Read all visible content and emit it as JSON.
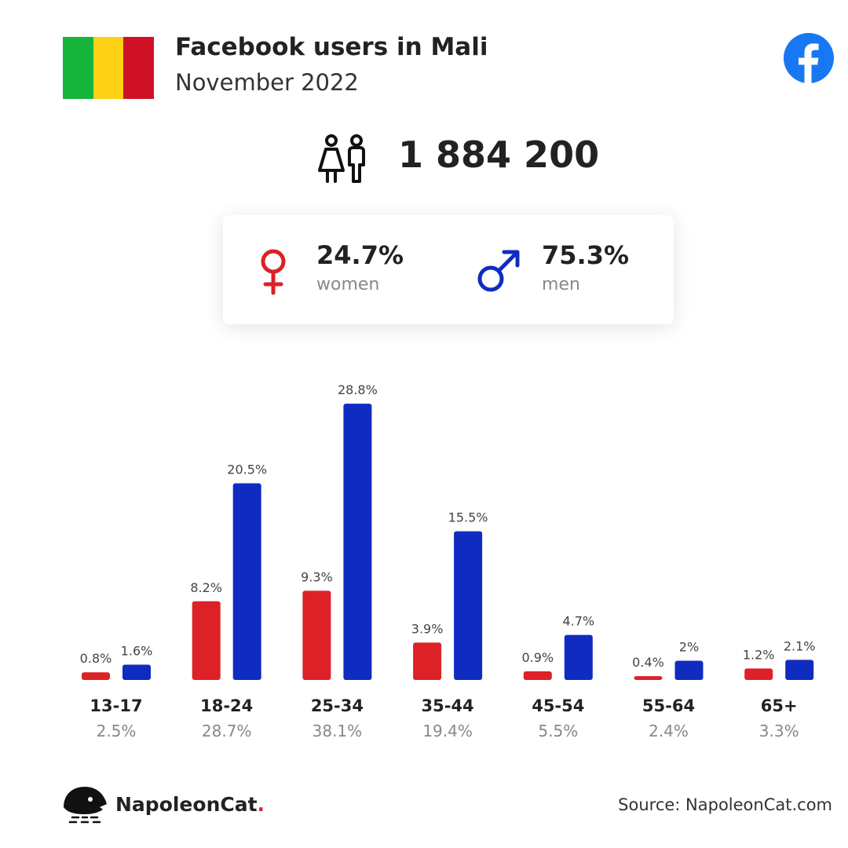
{
  "header": {
    "title": "Facebook users in Mali",
    "subtitle": "November 2022",
    "flag_colors": [
      "#14b53a",
      "#fcd116",
      "#ce1126"
    ],
    "flag_icon": "mali-flag",
    "platform_icon": "facebook-icon",
    "platform_color": "#1877f2"
  },
  "total": {
    "icon": "users-icon",
    "value": "1 884 200"
  },
  "gender": {
    "women": {
      "icon": "female-icon",
      "pct": "24.7%",
      "label": "women",
      "color": "#dc2127"
    },
    "men": {
      "icon": "male-icon",
      "pct": "75.3%",
      "label": "men",
      "color": "#102cc0"
    }
  },
  "chart_data": {
    "type": "bar",
    "categories": [
      "13-17",
      "18-24",
      "25-34",
      "35-44",
      "45-54",
      "55-64",
      "65+"
    ],
    "category_totals": [
      "2.5%",
      "28.7%",
      "38.1%",
      "19.4%",
      "5.5%",
      "2.4%",
      "3.3%"
    ],
    "series": [
      {
        "values": [
          0.8,
          8.2,
          9.3,
          3.9,
          0.9,
          0.4,
          1.2
        ],
        "labels": [
          "0.8%",
          "8.2%",
          "9.3%",
          "3.9%",
          "0.9%",
          "0.4%",
          "1.2%"
        ],
        "color": "#dc2127"
      },
      {
        "values": [
          1.6,
          20.5,
          28.8,
          15.5,
          4.7,
          2,
          2.1
        ],
        "labels": [
          "1.6%",
          "20.5%",
          "28.8%",
          "15.5%",
          "4.7%",
          "2%",
          "2.1%"
        ],
        "color": "#102cc0"
      }
    ],
    "unit": "%",
    "legend": "none",
    "grid": false
  },
  "footer": {
    "logo_icon": "napoleoncat-logo-icon",
    "brand": "NapoleonCat",
    "brand_dot": ".",
    "source": "Source: NapoleonCat.com"
  }
}
